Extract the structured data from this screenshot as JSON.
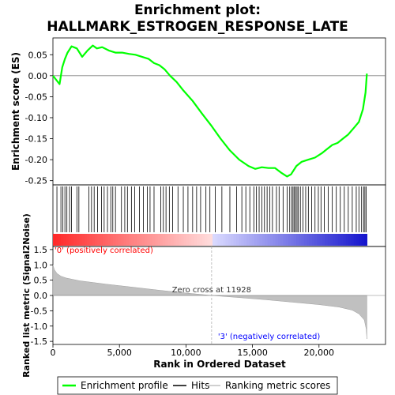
{
  "title_line1": "Enrichment plot:",
  "title_line2": "HALLMARK_ESTROGEN_RESPONSE_LATE",
  "chart_data": [
    {
      "panel": "enrichment-profile",
      "type": "line",
      "ylabel": "Enrichment score (ES)",
      "ylim": [
        -0.26,
        0.09
      ],
      "yticks": [
        0.05,
        0.0,
        -0.05,
        -0.1,
        -0.15,
        -0.2,
        -0.25
      ],
      "ytick_labels": [
        "0.05",
        "0.00",
        "-0.05",
        "-0.10",
        "-0.15",
        "-0.20",
        "-0.25"
      ],
      "xlim": [
        0,
        25000
      ],
      "grid": false,
      "zero_line": true,
      "color": "#00ff00",
      "x": [
        0,
        500,
        700,
        900,
        1100,
        1400,
        1800,
        2200,
        2600,
        3000,
        3300,
        3700,
        4200,
        4700,
        5200,
        5700,
        6200,
        6700,
        7200,
        7600,
        8000,
        8400,
        8800,
        9300,
        9800,
        10500,
        11200,
        11928,
        12600,
        13300,
        14000,
        14700,
        15200,
        15700,
        16200,
        16700,
        17200,
        17600,
        17900,
        18300,
        18700,
        19200,
        19700,
        20200,
        20600,
        21000,
        21400,
        21800,
        22200,
        22600,
        23000,
        23300,
        23500,
        23600
      ],
      "y": [
        0.0,
        -0.02,
        0.02,
        0.04,
        0.055,
        0.07,
        0.065,
        0.045,
        0.06,
        0.072,
        0.065,
        0.068,
        0.06,
        0.055,
        0.055,
        0.052,
        0.05,
        0.045,
        0.04,
        0.03,
        0.025,
        0.015,
        0.0,
        -0.015,
        -0.035,
        -0.06,
        -0.09,
        -0.12,
        -0.15,
        -0.178,
        -0.2,
        -0.215,
        -0.222,
        -0.218,
        -0.22,
        -0.22,
        -0.232,
        -0.24,
        -0.235,
        -0.215,
        -0.205,
        -0.2,
        -0.195,
        -0.185,
        -0.175,
        -0.165,
        -0.16,
        -0.15,
        -0.14,
        -0.125,
        -0.11,
        -0.08,
        -0.04,
        0.005
      ]
    },
    {
      "panel": "hits",
      "type": "barcode",
      "x": [
        300,
        600,
        750,
        900,
        1050,
        1250,
        1400,
        1800,
        1950,
        2700,
        2900,
        3100,
        3350,
        3650,
        3850,
        4100,
        4350,
        4500,
        4700,
        5150,
        5400,
        5600,
        5900,
        6150,
        6500,
        6800,
        7100,
        7300,
        7600,
        8100,
        8300,
        8500,
        8750,
        9000,
        9400,
        9800,
        10150,
        10500,
        10800,
        11100,
        11500,
        11800,
        12200,
        12700,
        13300,
        13800,
        14200,
        14500,
        14800,
        15100,
        15300,
        15500,
        15700,
        15900,
        16100,
        16300,
        16500,
        16800,
        17000,
        17300,
        17600,
        17800,
        17950,
        18050,
        18150,
        18250,
        18350,
        18450,
        18600,
        18800,
        19000,
        19200,
        19450,
        19700,
        19950,
        20150,
        20400,
        20700,
        21000,
        21300,
        21600,
        21900,
        22200,
        22500,
        22800,
        23000,
        23200,
        23350,
        23450,
        23550
      ]
    },
    {
      "panel": "ranked-list-metric",
      "type": "area",
      "ylabel": "Ranked list metric (Signal2Noise)",
      "xlabel": "Rank in Ordered Dataset",
      "ylim": [
        -1.6,
        1.6
      ],
      "yticks": [
        1.5,
        1.0,
        0.5,
        0.0,
        -0.5,
        -1.0,
        -1.5
      ],
      "ytick_labels": [
        "1.5",
        "1.0",
        "0.5",
        "0.0",
        "-0.5",
        "-1.0",
        "-1.5"
      ],
      "xlim": [
        0,
        25000
      ],
      "xticks": [
        0,
        5000,
        10000,
        15000,
        20000
      ],
      "xtick_labels": [
        "0",
        "5,000",
        "10,000",
        "15,000",
        "20,000"
      ],
      "x": [
        0,
        100,
        300,
        600,
        1000,
        2000,
        4000,
        6000,
        8000,
        10000,
        11928,
        14000,
        16000,
        18000,
        20000,
        21500,
        22500,
        23000,
        23400,
        23550,
        23600
      ],
      "y": [
        1.0,
        0.85,
        0.72,
        0.63,
        0.57,
        0.48,
        0.37,
        0.27,
        0.17,
        0.08,
        0.0,
        -0.07,
        -0.14,
        -0.22,
        -0.3,
        -0.38,
        -0.48,
        -0.6,
        -0.8,
        -1.1,
        -1.42
      ],
      "annotations": {
        "zero_cross": "Zero cross at 11928",
        "pos_label": "'0' (positively correlated)",
        "neg_label": "'3' (negatively correlated)"
      },
      "zero_cross_rank": 11928,
      "total_genes": 23600
    }
  ],
  "colors": {
    "profile": "#00ff00",
    "pos_label": "#ff0000",
    "neg_label": "#0000ff",
    "fill": "#c0c0c0"
  },
  "legend": {
    "items": [
      {
        "label": "Enrichment profile",
        "kind": "profile"
      },
      {
        "label": "Hits",
        "kind": "hits"
      },
      {
        "label": "Ranking metric scores",
        "kind": "metric"
      }
    ]
  }
}
